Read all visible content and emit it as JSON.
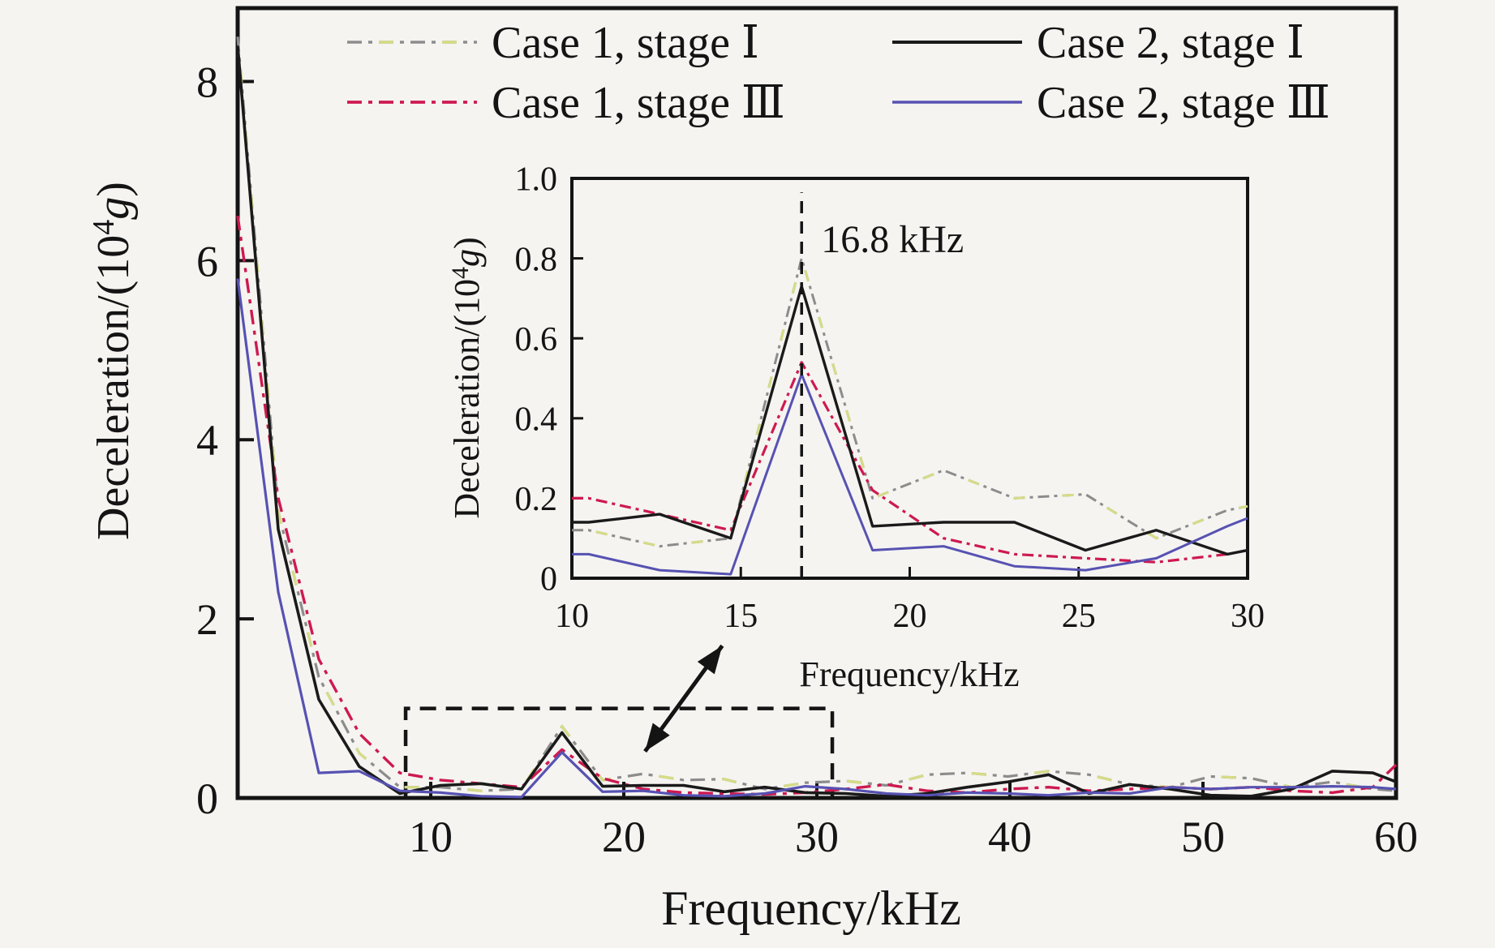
{
  "figure": {
    "background": "#f5f4f1",
    "ink": "#141414"
  },
  "legend": {
    "entries": [
      {
        "label": "Case 1, stage Ⅰ",
        "series": "case1_stage1"
      },
      {
        "label": "Case 1, stage Ⅲ",
        "series": "case1_stage3"
      },
      {
        "label": "Case 2, stage Ⅰ",
        "series": "case2_stage1"
      },
      {
        "label": "Case 2, stage Ⅲ",
        "series": "case2_stage3"
      }
    ]
  },
  "chart_data": [
    {
      "id": "main",
      "type": "line",
      "title": "",
      "xlabel": "Frequency/kHz",
      "ylabel": {
        "pre": "Deceleration/(10",
        "sup": "4",
        "italic": "g",
        "post": ")"
      },
      "xlim": [
        0,
        60
      ],
      "ylim": [
        0,
        8.82
      ],
      "grid": false,
      "xticks": [
        10,
        20,
        30,
        40,
        50,
        60
      ],
      "xtick_labels": [
        "10",
        "20",
        "30",
        "40",
        "50",
        "60"
      ],
      "yticks": [
        0,
        2,
        4,
        6,
        8
      ],
      "ytick_labels": [
        "0",
        "2",
        "4",
        "6",
        "8"
      ],
      "x": [
        0,
        2.1,
        4.2,
        6.3,
        8.4,
        10.5,
        12.6,
        14.7,
        16.8,
        18.9,
        21,
        23.1,
        25.2,
        27.3,
        29.4,
        31.5,
        33.6,
        35.7,
        37.8,
        39.9,
        42,
        44.1,
        46.2,
        48.3,
        50.4,
        52.5,
        54.6,
        56.7,
        58.8,
        60
      ],
      "series": [
        {
          "id": "case1_stage1",
          "name": "Case 1, stage Ⅰ",
          "style": "dashdot-alt",
          "color": "#8c8c8c",
          "alt_color": "#d6dc85",
          "width": 3.2,
          "values": [
            8.5,
            3.2,
            1.35,
            0.5,
            0.12,
            0.12,
            0.08,
            0.1,
            0.8,
            0.2,
            0.27,
            0.2,
            0.21,
            0.1,
            0.17,
            0.19,
            0.14,
            0.26,
            0.28,
            0.24,
            0.3,
            0.26,
            0.15,
            0.12,
            0.24,
            0.22,
            0.12,
            0.18,
            0.1,
            0.08
          ]
        },
        {
          "id": "case1_stage3",
          "name": "Case 1, stage Ⅲ",
          "style": "dashdot",
          "color": "#ce1950",
          "width": 3.4,
          "values": [
            6.5,
            3.35,
            1.55,
            0.72,
            0.28,
            0.2,
            0.16,
            0.12,
            0.54,
            0.22,
            0.1,
            0.06,
            0.05,
            0.04,
            0.06,
            0.1,
            0.15,
            0.08,
            0.06,
            0.1,
            0.12,
            0.08,
            0.1,
            0.12,
            0.1,
            0.12,
            0.08,
            0.06,
            0.12,
            0.37
          ]
        },
        {
          "id": "case2_stage1",
          "name": "Case 2, stage Ⅰ",
          "style": "solid",
          "color": "#1a1a1a",
          "width": 3.6,
          "values": [
            8.4,
            3.0,
            1.1,
            0.35,
            0.05,
            0.14,
            0.16,
            0.1,
            0.73,
            0.13,
            0.14,
            0.14,
            0.07,
            0.12,
            0.06,
            0.05,
            0.02,
            0.05,
            0.12,
            0.18,
            0.26,
            0.05,
            0.15,
            0.1,
            0.03,
            0.02,
            0.1,
            0.3,
            0.28,
            0.18
          ]
        },
        {
          "id": "case2_stage3",
          "name": "Case 2, stage Ⅲ",
          "style": "solid",
          "color": "#5752b2",
          "width": 3.2,
          "values": [
            5.8,
            2.3,
            0.28,
            0.3,
            0.08,
            0.06,
            0.02,
            0.01,
            0.51,
            0.07,
            0.08,
            0.03,
            0.02,
            0.05,
            0.13,
            0.1,
            0.05,
            0.03,
            0.06,
            0.05,
            0.03,
            0.06,
            0.05,
            0.12,
            0.1,
            0.12,
            0.12,
            0.13,
            0.12,
            0.1
          ]
        }
      ],
      "zoom_box": {
        "x0": 8.7,
        "y0": 0,
        "x1": 30.8,
        "y1": 1.0
      },
      "arrow": {
        "x1": 21.1,
        "y1": 0.52,
        "x2": 25.1,
        "y2": 1.7
      }
    },
    {
      "id": "inset",
      "type": "line",
      "title": "",
      "xlabel": "Frequency/kHz",
      "ylabel": {
        "pre": "Deceleration/(10",
        "sup": "4",
        "italic": "g",
        "post": ")"
      },
      "xlim": [
        10,
        30
      ],
      "ylim": [
        0,
        1.0
      ],
      "grid": false,
      "xticks": [
        10,
        15,
        20,
        25,
        30
      ],
      "xtick_labels": [
        "10",
        "15",
        "20",
        "25",
        "30"
      ],
      "yticks": [
        0,
        0.2,
        0.4,
        0.6,
        0.8,
        1.0
      ],
      "ytick_labels": [
        "0",
        "0.2",
        "0.4",
        "0.6",
        "0.8",
        "1.0"
      ],
      "annotation": {
        "x": 16.8,
        "label": "16.8 kHz"
      },
      "x": [
        10,
        10.5,
        12.6,
        14.7,
        16.8,
        18.9,
        21,
        23.1,
        25.2,
        27.3,
        29.4,
        30
      ],
      "series": [
        {
          "id": "case1_stage1",
          "name": "Case 1, stage Ⅰ",
          "style": "dashdot-alt",
          "color": "#8c8c8c",
          "alt_color": "#d6dc85",
          "width": 3.0,
          "values": [
            0.12,
            0.12,
            0.08,
            0.1,
            0.8,
            0.2,
            0.27,
            0.2,
            0.21,
            0.1,
            0.17,
            0.18
          ]
        },
        {
          "id": "case1_stage3",
          "name": "Case 1, stage Ⅲ",
          "style": "dashdot",
          "color": "#ce1950",
          "width": 3.2,
          "values": [
            0.2,
            0.2,
            0.16,
            0.12,
            0.54,
            0.22,
            0.1,
            0.06,
            0.05,
            0.04,
            0.06,
            0.07
          ]
        },
        {
          "id": "case2_stage1",
          "name": "Case 2, stage Ⅰ",
          "style": "solid",
          "color": "#1a1a1a",
          "width": 3.4,
          "values": [
            0.14,
            0.14,
            0.16,
            0.1,
            0.73,
            0.13,
            0.14,
            0.14,
            0.07,
            0.12,
            0.06,
            0.07
          ]
        },
        {
          "id": "case2_stage3",
          "name": "Case 2, stage Ⅲ",
          "style": "solid",
          "color": "#5752b2",
          "width": 3.0,
          "values": [
            0.06,
            0.06,
            0.02,
            0.01,
            0.51,
            0.07,
            0.08,
            0.03,
            0.02,
            0.05,
            0.13,
            0.15
          ]
        }
      ]
    }
  ]
}
